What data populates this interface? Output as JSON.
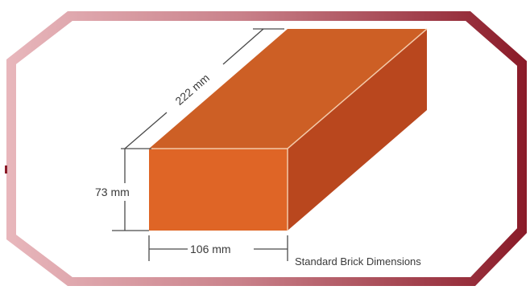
{
  "diagram": {
    "caption": "Standard Brick Dimensions",
    "dimensions": {
      "length": "222 mm",
      "height": "73 mm",
      "width": "106 mm"
    },
    "colors": {
      "frame_left": "#e8b7bc",
      "frame_right": "#8a1a28",
      "brick_front": "#df6526",
      "brick_top": "#cd5f25",
      "brick_side": "#b9471e",
      "brick_edge": "#f3c9a9",
      "dimension_line": "#4a4a4a"
    }
  }
}
